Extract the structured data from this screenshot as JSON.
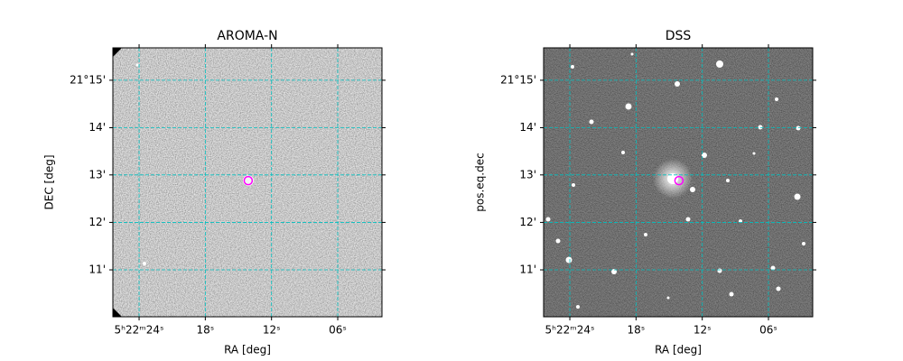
{
  "chart_data": [
    {
      "type": "image",
      "title": "AROMA-N",
      "xlabel": "RA [deg]",
      "ylabel": "DEC [deg]",
      "xlim": [
        80.6099,
        80.5083
      ],
      "ylim": [
        21.1668,
        21.2614
      ],
      "xticks": [
        {
          "value": 80.6,
          "label": "5ʰ22ᵐ24ˢ"
        },
        {
          "value": 80.575,
          "label": "18ˢ"
        },
        {
          "value": 80.55,
          "label": "12ˢ"
        },
        {
          "value": 80.525,
          "label": "06ˢ"
        }
      ],
      "yticks": [
        {
          "value": 21.25,
          "label": "21°15'"
        },
        {
          "value": 21.2333,
          "label": "14'"
        },
        {
          "value": 21.2167,
          "label": "13'"
        },
        {
          "value": 21.2,
          "label": "12'"
        },
        {
          "value": 21.1833,
          "label": "11'"
        }
      ],
      "grid": true,
      "grid_color": "#00bfbf",
      "marker": {
        "x": 80.5588,
        "y": 21.2147,
        "color": "#ff00ff"
      }
    },
    {
      "type": "image",
      "title": "DSS",
      "xlabel": "RA [deg]",
      "ylabel": "pos.eq.dec",
      "xlim": [
        80.6099,
        80.5083
      ],
      "ylim": [
        21.1668,
        21.2614
      ],
      "xticks": [
        {
          "value": 80.6,
          "label": "5ʰ22ᵐ24ˢ"
        },
        {
          "value": 80.575,
          "label": "18ˢ"
        },
        {
          "value": 80.55,
          "label": "12ˢ"
        },
        {
          "value": 80.525,
          "label": "06ˢ"
        }
      ],
      "yticks": [
        {
          "value": 21.25,
          "label": "21°15'"
        },
        {
          "value": 21.2333,
          "label": "14'"
        },
        {
          "value": 21.2167,
          "label": "13'"
        },
        {
          "value": 21.2,
          "label": "12'"
        },
        {
          "value": 21.1833,
          "label": "11'"
        }
      ],
      "grid": true,
      "grid_color": "#00bfbf",
      "marker": {
        "x": 80.5588,
        "y": 21.2147,
        "color": "#ff00ff"
      }
    }
  ]
}
